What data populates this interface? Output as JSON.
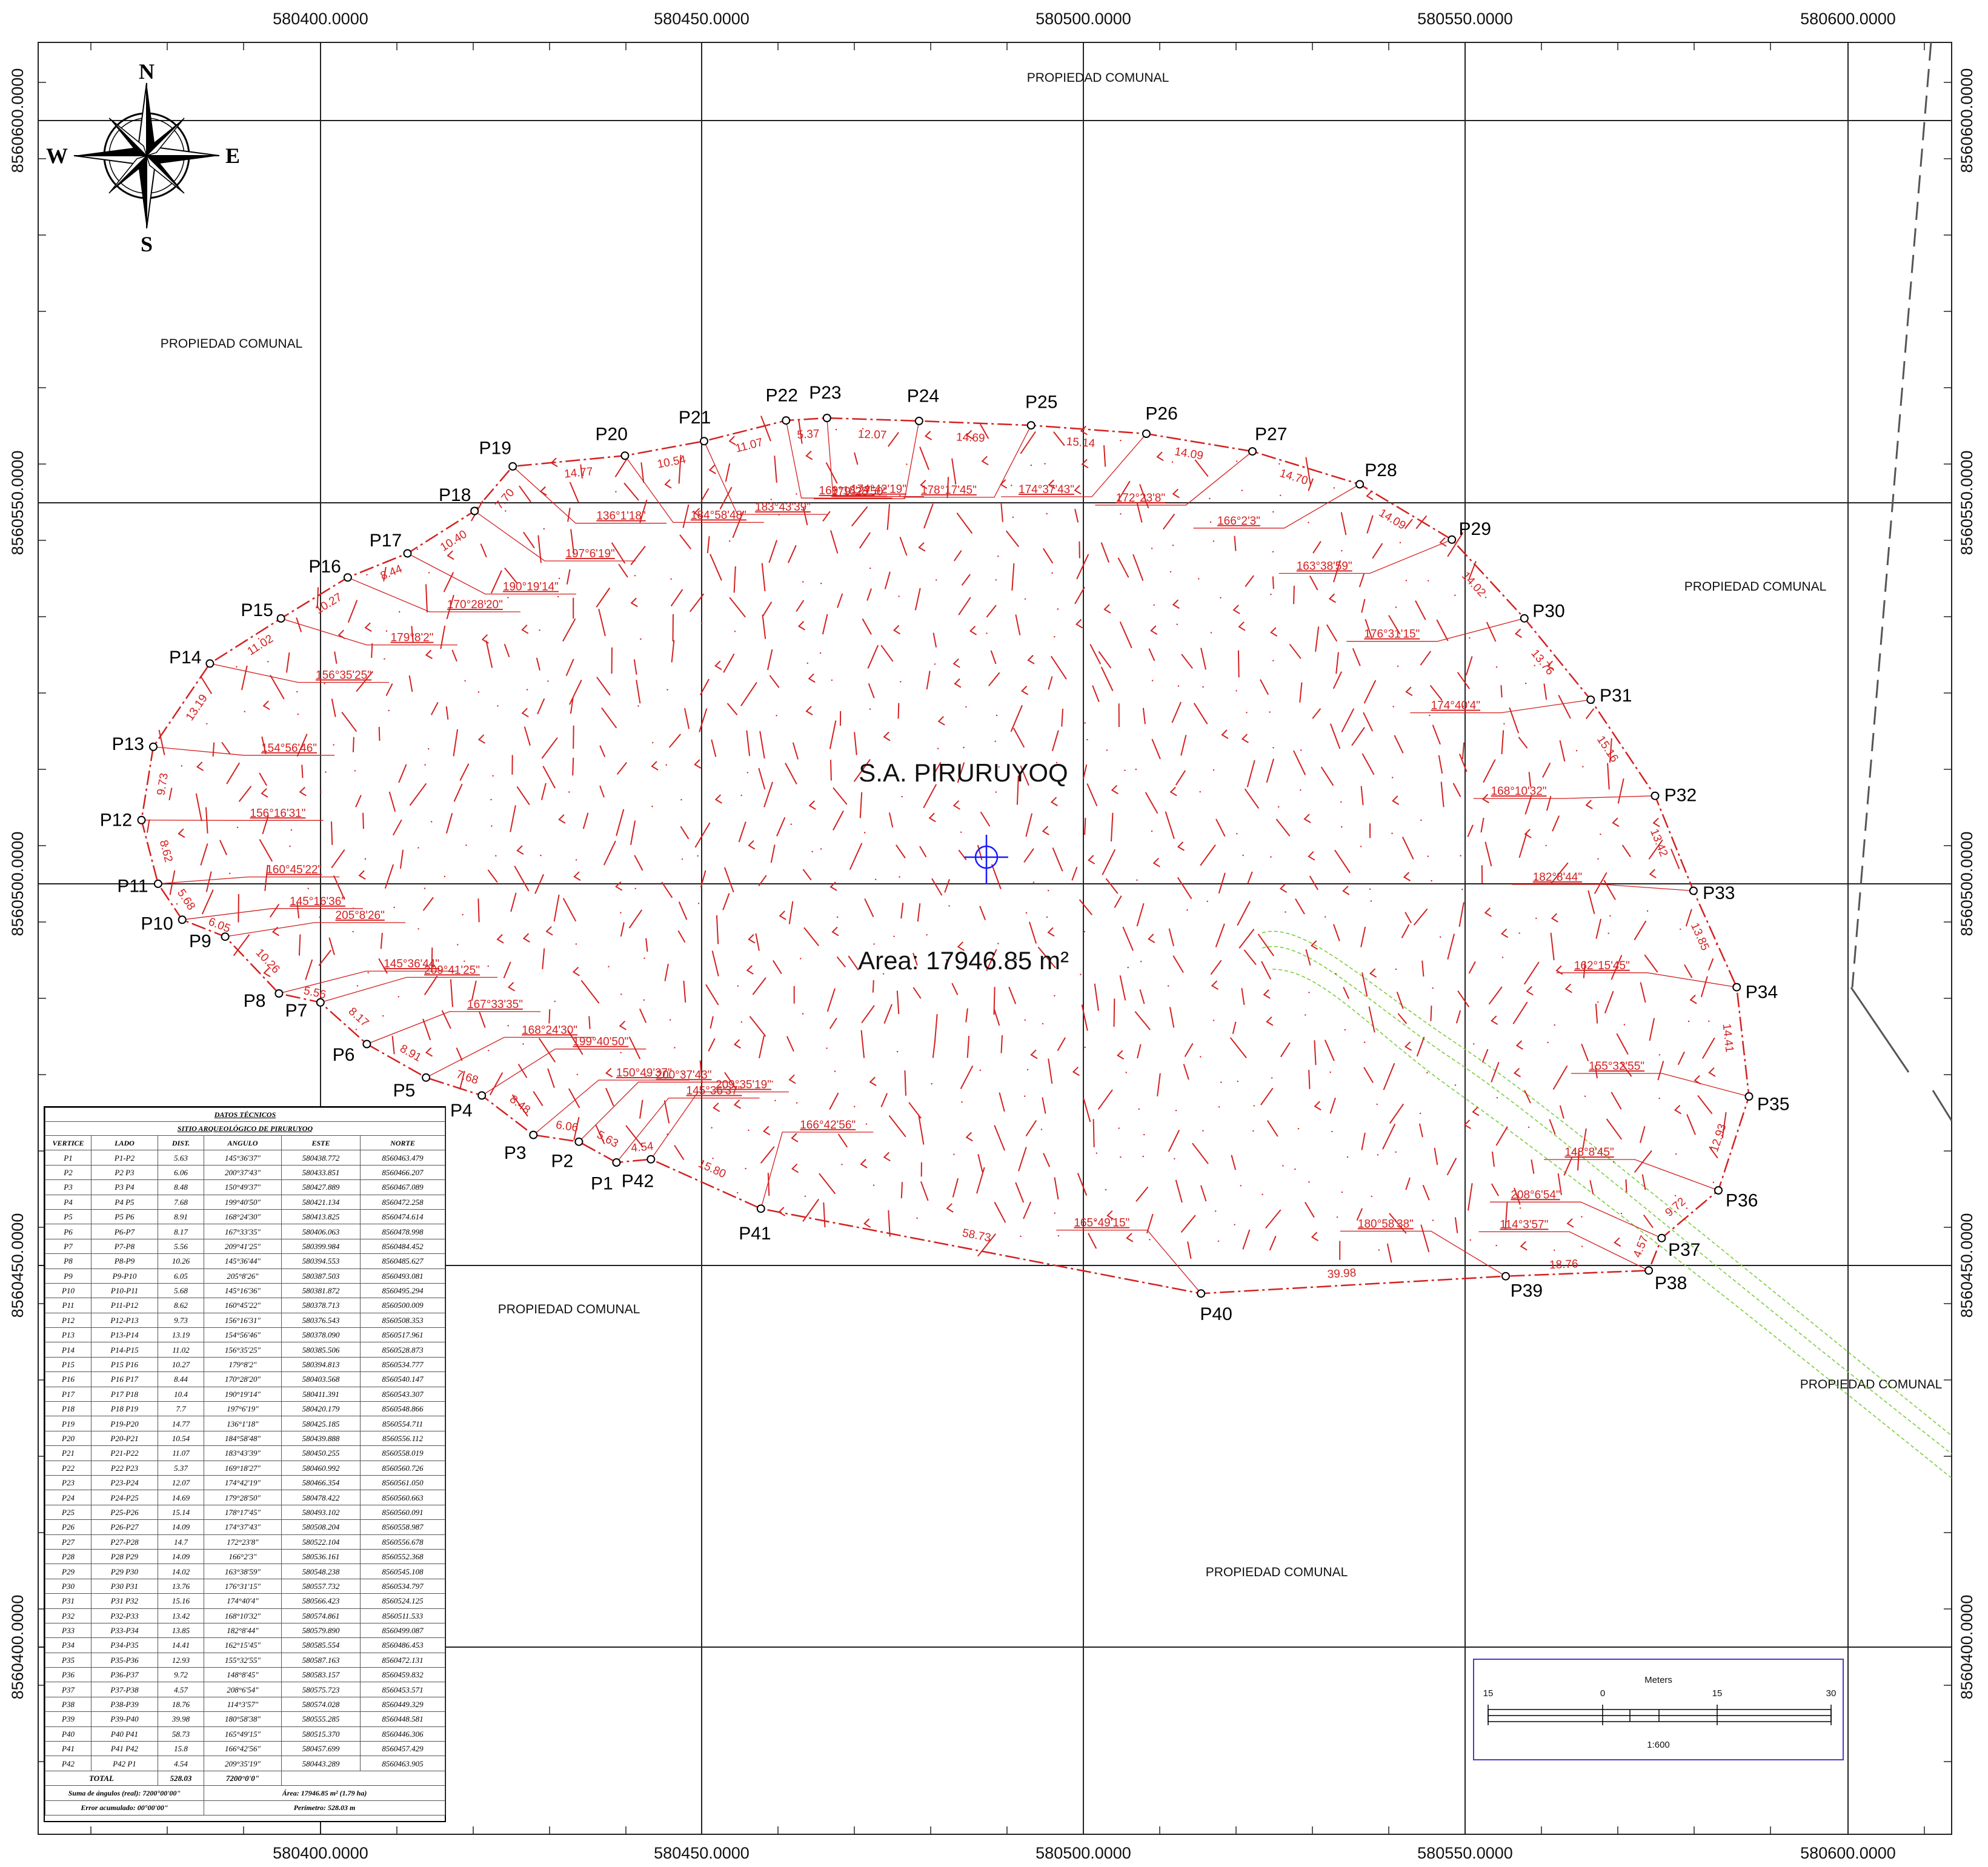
{
  "map": {
    "easting_ticks": [
      "580400.0000",
      "580450.0000",
      "580500.0000",
      "580550.0000",
      "580600.0000"
    ],
    "northing_ticks": [
      "8560600.0000",
      "8560550.0000",
      "8560500.0000",
      "8560450.0000",
      "8560400.0000"
    ],
    "region_label": "PROPIEDAD COMUNAL",
    "site_name": "S.A. PIRURUYOQ",
    "area_label": "Area: 17946.85 m²",
    "compass": {
      "n": "N",
      "s": "S",
      "e": "E",
      "w": "W"
    },
    "colors": {
      "boundary": "#d42020",
      "grid": "#222222",
      "benchmark": "#1a1aff",
      "stream": "#7ccc3a"
    }
  },
  "vertices": [
    {
      "id": "P1",
      "e": 580438.772,
      "n": 8560463.479
    },
    {
      "id": "P2",
      "e": 580433.851,
      "n": 8560466.207
    },
    {
      "id": "P3",
      "e": 580427.889,
      "n": 8560467.089
    },
    {
      "id": "P4",
      "e": 580421.134,
      "n": 8560472.258
    },
    {
      "id": "P5",
      "e": 580413.825,
      "n": 8560474.614
    },
    {
      "id": "P6",
      "e": 580406.063,
      "n": 8560478.998
    },
    {
      "id": "P7",
      "e": 580399.984,
      "n": 8560484.452
    },
    {
      "id": "P8",
      "e": 580394.553,
      "n": 8560485.627
    },
    {
      "id": "P9",
      "e": 580387.503,
      "n": 8560493.081
    },
    {
      "id": "P10",
      "e": 580381.872,
      "n": 8560495.294
    },
    {
      "id": "P11",
      "e": 580378.713,
      "n": 8560500.009
    },
    {
      "id": "P12",
      "e": 580376.543,
      "n": 8560508.353
    },
    {
      "id": "P13",
      "e": 580378.09,
      "n": 8560517.961
    },
    {
      "id": "P14",
      "e": 580385.506,
      "n": 8560528.873
    },
    {
      "id": "P15",
      "e": 580394.813,
      "n": 8560534.777
    },
    {
      "id": "P16",
      "e": 580403.568,
      "n": 8560540.147
    },
    {
      "id": "P17",
      "e": 580411.391,
      "n": 8560543.307
    },
    {
      "id": "P18",
      "e": 580420.179,
      "n": 8560548.866
    },
    {
      "id": "P19",
      "e": 580425.185,
      "n": 8560554.711
    },
    {
      "id": "P20",
      "e": 580439.888,
      "n": 8560556.112
    },
    {
      "id": "P21",
      "e": 580450.255,
      "n": 8560558.019
    },
    {
      "id": "P22",
      "e": 580460.992,
      "n": 8560560.726
    },
    {
      "id": "P23",
      "e": 580466.354,
      "n": 8560561.05
    },
    {
      "id": "P24",
      "e": 580478.422,
      "n": 8560560.663
    },
    {
      "id": "P25",
      "e": 580493.102,
      "n": 8560560.091
    },
    {
      "id": "P26",
      "e": 580508.204,
      "n": 8560558.987
    },
    {
      "id": "P27",
      "e": 580522.104,
      "n": 8560556.678
    },
    {
      "id": "P28",
      "e": 580536.161,
      "n": 8560552.368
    },
    {
      "id": "P29",
      "e": 580548.238,
      "n": 8560545.108
    },
    {
      "id": "P30",
      "e": 580557.732,
      "n": 8560534.797
    },
    {
      "id": "P31",
      "e": 580566.423,
      "n": 8560524.125
    },
    {
      "id": "P32",
      "e": 580574.861,
      "n": 8560511.533
    },
    {
      "id": "P33",
      "e": 580579.89,
      "n": 8560499.087
    },
    {
      "id": "P34",
      "e": 580585.554,
      "n": 8560486.453
    },
    {
      "id": "P35",
      "e": 580587.163,
      "n": 8560472.131
    },
    {
      "id": "P36",
      "e": 580583.157,
      "n": 8560459.832
    },
    {
      "id": "P37",
      "e": 580575.723,
      "n": 8560453.571
    },
    {
      "id": "P38",
      "e": 580574.028,
      "n": 8560449.329
    },
    {
      "id": "P39",
      "e": 580555.285,
      "n": 8560448.581
    },
    {
      "id": "P40",
      "e": 580515.37,
      "n": 8560446.306
    },
    {
      "id": "P41",
      "e": 580457.699,
      "n": 8560457.429
    },
    {
      "id": "P42",
      "e": 580443.289,
      "n": 8560463.905
    }
  ],
  "segment_distances": [
    "5.63",
    "6.06",
    "8.48",
    "7.68",
    "8.91",
    "8.17",
    "5.56",
    "10.26",
    "6.05",
    "5.68",
    "8.62",
    "9.73",
    "13.19",
    "11.02",
    "10.27",
    "8.44",
    "10.40",
    "7.70",
    "14.77",
    "10.54",
    "11.07",
    "5.37",
    "12.07",
    "14.69",
    "15.14",
    "14.09",
    "14.70",
    "14.09",
    "14.02",
    "13.76",
    "15.16",
    "13.42",
    "13.85",
    "14.41",
    "12.93",
    "9.72",
    "4.57",
    "18.76",
    "39.98",
    "58.73",
    "15.80",
    "4.54"
  ],
  "vertex_angles": [
    "145°36'37\"",
    "200°37'43\"",
    "150°49'37\"",
    "199°40'50\"",
    "168°24'30\"",
    "167°33'35\"",
    "209°41'25\"",
    "145°36'44\"",
    "205°8'26\"",
    "145°16'36\"",
    "160°45'22\"",
    "156°16'31\"",
    "154°56'46\"",
    "156°35'25\"",
    "179°8'2\"",
    "170°28'20\"",
    "190°19'14\"",
    "197°6'19\"",
    "136°1'18\"",
    "184°58'48\"",
    "183°43'39\"",
    "169°18'27\"",
    "174°42'19\"",
    "179°28'50\"",
    "178°17'45\"",
    "174°37'43\"",
    "172°23'8\"",
    "166°2'3\"",
    "163°38'59\"",
    "176°31'15\"",
    "174°40'4\"",
    "168°10'32\"",
    "182°8'44\"",
    "162°15'45\"",
    "155°32'55\"",
    "148°8'45\"",
    "208°6'54\"",
    "114°3'57\"",
    "180°58'38\"",
    "165°49'15\"",
    "166°42'56\"",
    "209°35'19\""
  ],
  "table": {
    "title": "DATOS TÉCNICOS",
    "subtitle": "SITIO ARQUEOLÓGICO DE PIRURUYOQ",
    "headers": [
      "VERTICE",
      "LADO",
      "DIST.",
      "ANGULO",
      "ESTE",
      "NORTE"
    ],
    "rows": [
      [
        "P1",
        "P1-P2",
        "5.63",
        "145°36'37\"",
        "580438.772",
        "8560463.479"
      ],
      [
        "P2",
        "P2 P3",
        "6.06",
        "200°37'43\"",
        "580433.851",
        "8560466.207"
      ],
      [
        "P3",
        "P3 P4",
        "8.48",
        "150°49'37\"",
        "580427.889",
        "8560467.089"
      ],
      [
        "P4",
        "P4 P5",
        "7.68",
        "199°40'50\"",
        "580421.134",
        "8560472.258"
      ],
      [
        "P5",
        "P5 P6",
        "8.91",
        "168°24'30\"",
        "580413.825",
        "8560474.614"
      ],
      [
        "P6",
        "P6-P7",
        "8.17",
        "167°33'35\"",
        "580406.063",
        "8560478.998"
      ],
      [
        "P7",
        "P7-P8",
        "5.56",
        "209°41'25\"",
        "580399.984",
        "8560484.452"
      ],
      [
        "P8",
        "P8-P9",
        "10.26",
        "145°36'44\"",
        "580394.553",
        "8560485.627"
      ],
      [
        "P9",
        "P9-P10",
        "6.05",
        "205°8'26\"",
        "580387.503",
        "8560493.081"
      ],
      [
        "P10",
        "P10-P11",
        "5.68",
        "145°16'36\"",
        "580381.872",
        "8560495.294"
      ],
      [
        "P11",
        "P11-P12",
        "8.62",
        "160°45'22\"",
        "580378.713",
        "8560500.009"
      ],
      [
        "P12",
        "P12-P13",
        "9.73",
        "156°16'31\"",
        "580376.543",
        "8560508.353"
      ],
      [
        "P13",
        "P13-P14",
        "13.19",
        "154°56'46\"",
        "580378.090",
        "8560517.961"
      ],
      [
        "P14",
        "P14-P15",
        "11.02",
        "156°35'25\"",
        "580385.506",
        "8560528.873"
      ],
      [
        "P15",
        "P15 P16",
        "10.27",
        "179°8'2\"",
        "580394.813",
        "8560534.777"
      ],
      [
        "P16",
        "P16 P17",
        "8.44",
        "170°28'20\"",
        "580403.568",
        "8560540.147"
      ],
      [
        "P17",
        "P17 P18",
        "10.4",
        "190°19'14\"",
        "580411.391",
        "8560543.307"
      ],
      [
        "P18",
        "P18 P19",
        "7.7",
        "197°6'19\"",
        "580420.179",
        "8560548.866"
      ],
      [
        "P19",
        "P19-P20",
        "14.77",
        "136°1'18\"",
        "580425.185",
        "8560554.711"
      ],
      [
        "P20",
        "P20-P21",
        "10.54",
        "184°58'48\"",
        "580439.888",
        "8560556.112"
      ],
      [
        "P21",
        "P21-P22",
        "11.07",
        "183°43'39\"",
        "580450.255",
        "8560558.019"
      ],
      [
        "P22",
        "P22 P23",
        "5.37",
        "169°18'27\"",
        "580460.992",
        "8560560.726"
      ],
      [
        "P23",
        "P23-P24",
        "12.07",
        "174°42'19\"",
        "580466.354",
        "8560561.050"
      ],
      [
        "P24",
        "P24-P25",
        "14.69",
        "179°28'50\"",
        "580478.422",
        "8560560.663"
      ],
      [
        "P25",
        "P25-P26",
        "15.14",
        "178°17'45\"",
        "580493.102",
        "8560560.091"
      ],
      [
        "P26",
        "P26-P27",
        "14.09",
        "174°37'43\"",
        "580508.204",
        "8560558.987"
      ],
      [
        "P27",
        "P27-P28",
        "14.7",
        "172°23'8\"",
        "580522.104",
        "8560556.678"
      ],
      [
        "P28",
        "P28 P29",
        "14.09",
        "166°2'3\"",
        "580536.161",
        "8560552.368"
      ],
      [
        "P29",
        "P29 P30",
        "14.02",
        "163°38'59\"",
        "580548.238",
        "8560545.108"
      ],
      [
        "P30",
        "P30 P31",
        "13.76",
        "176°31'15\"",
        "580557.732",
        "8560534.797"
      ],
      [
        "P31",
        "P31 P32",
        "15.16",
        "174°40'4\"",
        "580566.423",
        "8560524.125"
      ],
      [
        "P32",
        "P32-P33",
        "13.42",
        "168°10'32\"",
        "580574.861",
        "8560511.533"
      ],
      [
        "P33",
        "P33-P34",
        "13.85",
        "182°8'44\"",
        "580579.890",
        "8560499.087"
      ],
      [
        "P34",
        "P34-P35",
        "14.41",
        "162°15'45\"",
        "580585.554",
        "8560486.453"
      ],
      [
        "P35",
        "P35-P36",
        "12.93",
        "155°32'55\"",
        "580587.163",
        "8560472.131"
      ],
      [
        "P36",
        "P36-P37",
        "9.72",
        "148°8'45\"",
        "580583.157",
        "8560459.832"
      ],
      [
        "P37",
        "P37-P38",
        "4.57",
        "208°6'54\"",
        "580575.723",
        "8560453.571"
      ],
      [
        "P38",
        "P38-P39",
        "18.76",
        "114°3'57\"",
        "580574.028",
        "8560449.329"
      ],
      [
        "P39",
        "P39-P40",
        "39.98",
        "180°58'38\"",
        "580555.285",
        "8560448.581"
      ],
      [
        "P40",
        "P40 P41",
        "58.73",
        "165°49'15\"",
        "580515.370",
        "8560446.306"
      ],
      [
        "P41",
        "P41 P42",
        "15.8",
        "166°42'56\"",
        "580457.699",
        "8560457.429"
      ],
      [
        "P42",
        "P42 P1",
        "4.54",
        "209°35'19\"",
        "580443.289",
        "8560463.905"
      ]
    ],
    "total_label": "TOTAL",
    "total_dist": "528.03",
    "total_angle": "7200°0'0\"",
    "sum_angles": "Suma de ángulos (real): 7200°00'00\"",
    "error": "Error acumulado: 00°00'00\"",
    "area": "Área: 17946.85 m² (1.79 ha)",
    "perimeter": "Perímetro: 528.03 m"
  },
  "scale_bar": {
    "unit": "Meters",
    "ticks": [
      "15",
      "0",
      "15",
      "30"
    ],
    "ratio": "1:600"
  }
}
